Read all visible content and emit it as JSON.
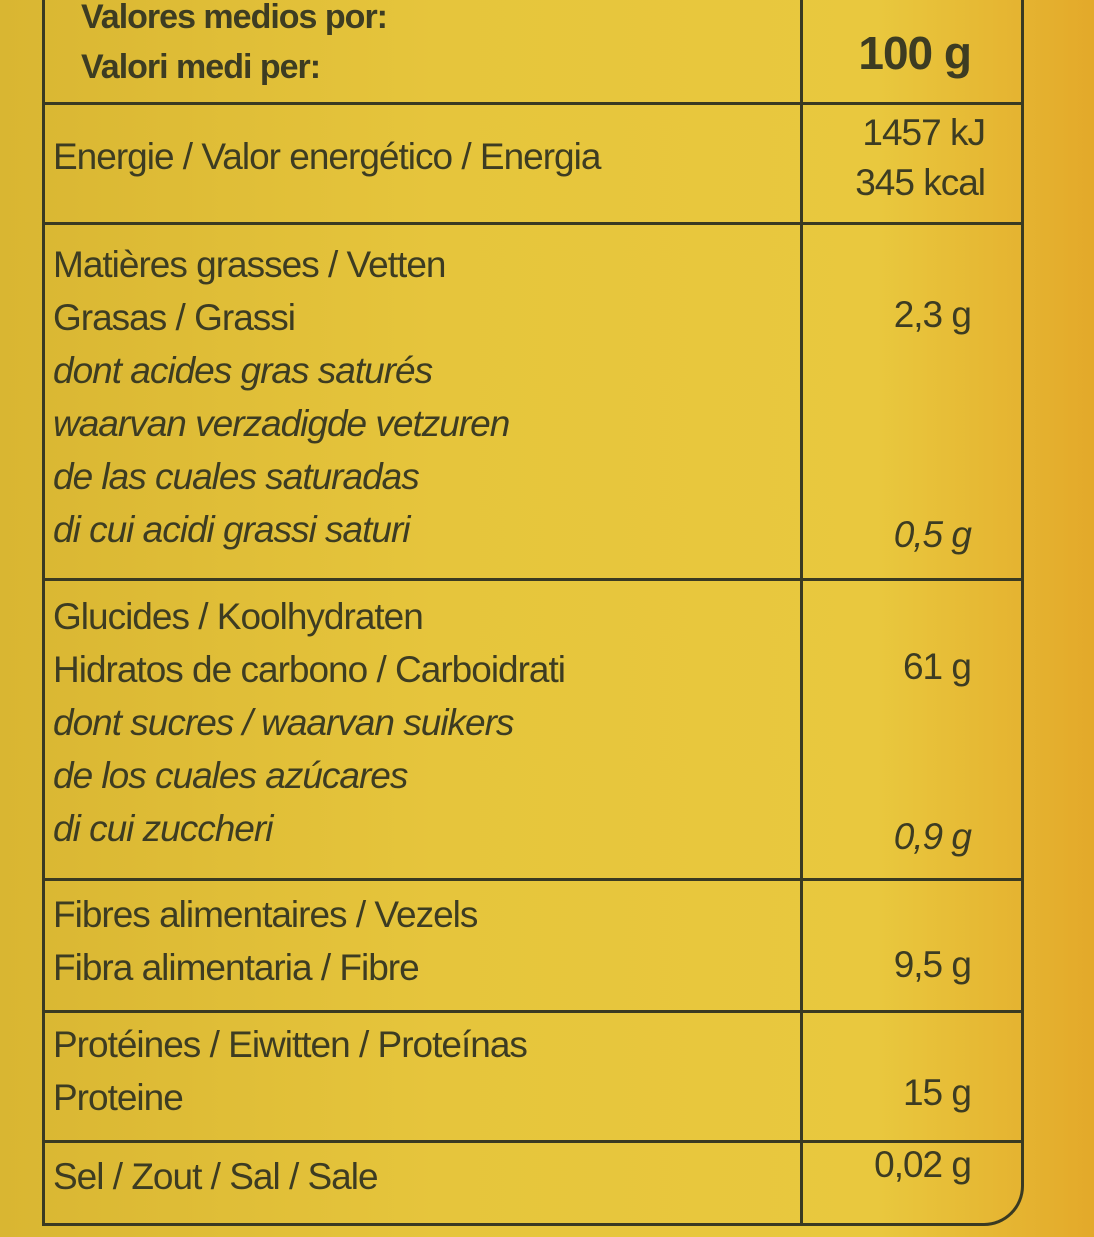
{
  "header": {
    "lines": [
      "Valores medios por:",
      "Valori medi per:"
    ],
    "value": "100 g"
  },
  "energy": {
    "label": "Energie / Valor energético / Energia",
    "kj": "1457 kJ",
    "kcal": "345 kcal"
  },
  "fat": {
    "lines": [
      "Matières grasses / Vetten",
      "Grasas / Grassi"
    ],
    "value": "2,3 g",
    "sub_lines": [
      "dont acides gras saturés",
      "waarvan verzadigde vetzuren",
      "de las cuales saturadas",
      "di cui acidi grassi saturi"
    ],
    "sub_value": "0,5 g"
  },
  "carbs": {
    "lines": [
      "Glucides / Koolhydraten",
      "Hidratos de carbono / Carboidrati"
    ],
    "value": "61 g",
    "sub_lines": [
      "dont sucres / waarvan suikers",
      "de los cuales azúcares",
      "di cui zuccheri"
    ],
    "sub_value": "0,9 g"
  },
  "fibre": {
    "lines": [
      "Fibres alimentaires / Vezels",
      "Fibra alimentaria / Fibre"
    ],
    "value": "9,5 g"
  },
  "protein": {
    "lines": [
      "Protéines / Eiwitten / Proteínas",
      "Proteine"
    ],
    "value": "15 g"
  },
  "salt": {
    "label": "Sel / Zout / Sal / Sale",
    "value": "0,02 g"
  }
}
